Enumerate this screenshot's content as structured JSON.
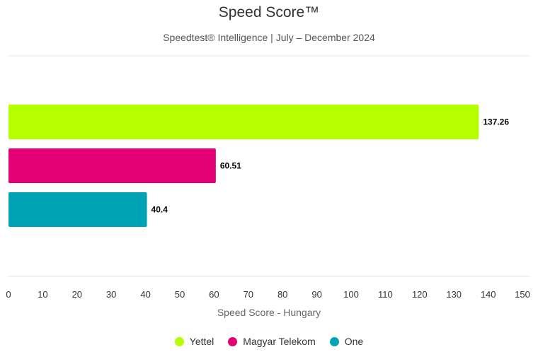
{
  "chart_data": {
    "type": "bar",
    "orientation": "horizontal",
    "title": "Speed Score™",
    "subtitle": "Speedtest® Intelligence | July – December 2024",
    "xlabel": "Speed Score - Hungary",
    "ylabel": "",
    "xlim": [
      0,
      150
    ],
    "x_ticks": [
      0,
      10,
      20,
      30,
      40,
      50,
      60,
      70,
      80,
      90,
      100,
      110,
      120,
      130,
      140,
      150
    ],
    "grid": false,
    "legend_position": "bottom",
    "series": [
      {
        "name": "Yettel",
        "value": 137.26,
        "label": "137.26",
        "color": "#b4ff00"
      },
      {
        "name": "Magyar Telekom",
        "value": 60.51,
        "label": "60.51",
        "color": "#e20074"
      },
      {
        "name": "One",
        "value": 40.4,
        "label": "40.4",
        "color": "#00a3b4"
      }
    ]
  }
}
